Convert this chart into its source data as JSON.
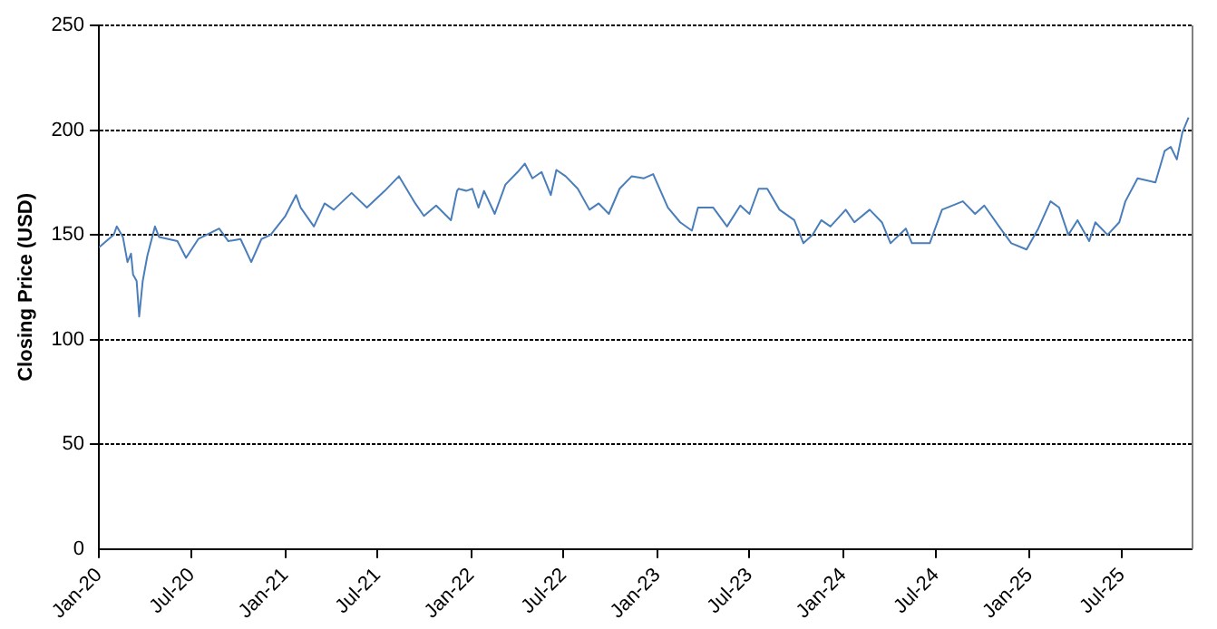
{
  "chart_data": {
    "type": "line",
    "ylabel": "Closing Price (USD)",
    "x": [
      "2020-01-01",
      "2020-01-30",
      "2020-02-05",
      "2020-02-17",
      "2020-02-26",
      "2020-03-04",
      "2020-03-08",
      "2020-03-15",
      "2020-03-20",
      "2020-03-27",
      "2020-04-05",
      "2020-04-20",
      "2020-04-28",
      "2020-05-16",
      "2020-06-03",
      "2020-06-20",
      "2020-07-14",
      "2020-08-24",
      "2020-09-11",
      "2020-10-05",
      "2020-10-26",
      "2020-11-15",
      "2020-12-03",
      "2021-01-01",
      "2021-01-22",
      "2021-01-31",
      "2021-02-26",
      "2021-03-19",
      "2021-04-06",
      "2021-05-11",
      "2021-06-10",
      "2021-07-15",
      "2021-08-12",
      "2021-09-13",
      "2021-09-30",
      "2021-10-24",
      "2021-11-22",
      "2021-12-04",
      "2021-12-07",
      "2021-12-22",
      "2022-01-03",
      "2022-01-15",
      "2022-01-26",
      "2022-02-16",
      "2022-03-09",
      "2022-04-02",
      "2022-04-16",
      "2022-05-01",
      "2022-05-19",
      "2022-06-06",
      "2022-06-17",
      "2022-07-05",
      "2022-07-29",
      "2022-08-21",
      "2022-09-08",
      "2022-09-28",
      "2022-10-19",
      "2022-11-12",
      "2022-12-06",
      "2022-12-24",
      "2023-01-22",
      "2023-02-15",
      "2023-03-10",
      "2023-03-22",
      "2023-04-21",
      "2023-05-18",
      "2023-06-13",
      "2023-07-01",
      "2023-07-19",
      "2023-08-05",
      "2023-08-29",
      "2023-09-27",
      "2023-10-15",
      "2023-11-02",
      "2023-11-19",
      "2023-12-07",
      "2024-01-06",
      "2024-01-23",
      "2024-02-22",
      "2024-03-17",
      "2024-04-03",
      "2024-05-03",
      "2024-05-15",
      "2024-06-19",
      "2024-07-13",
      "2024-08-23",
      "2024-09-16",
      "2024-10-04",
      "2024-11-02",
      "2024-11-26",
      "2024-12-26",
      "2025-01-18",
      "2025-02-11",
      "2025-02-28",
      "2025-03-18",
      "2025-04-05",
      "2025-04-28",
      "2025-05-10",
      "2025-06-03",
      "2025-06-26",
      "2025-07-08",
      "2025-08-01",
      "2025-09-05",
      "2025-09-23",
      "2025-10-05",
      "2025-10-17",
      "2025-10-28",
      "2025-11-09"
    ],
    "series": [
      {
        "color": "#4a7ebb",
        "values": [
          144,
          150,
          154,
          149,
          137,
          141,
          131,
          128,
          111,
          128,
          140,
          154,
          149,
          148,
          147,
          139,
          148,
          153,
          147,
          148,
          137,
          148,
          150,
          159,
          169,
          163,
          154,
          165,
          162,
          170,
          163,
          171,
          178,
          165,
          159,
          164,
          157,
          171,
          172,
          171,
          172,
          163,
          171,
          160,
          174,
          180,
          184,
          177,
          180,
          169,
          181,
          178,
          172,
          162,
          165,
          160,
          172,
          178,
          177,
          179,
          163,
          156,
          152,
          163,
          163,
          154,
          164,
          160,
          172,
          172,
          162,
          157,
          146,
          150,
          157,
          154,
          162,
          156,
          162,
          156,
          146,
          153,
          146,
          146,
          162,
          166,
          160,
          164,
          154,
          146,
          143,
          153,
          166,
          163,
          150,
          157,
          147,
          156,
          150,
          156,
          166,
          177,
          175,
          190,
          192,
          186,
          199,
          206
        ]
      }
    ],
    "xlim": [
      "2020-01-01",
      "2025-11-15"
    ],
    "xticks": [
      {
        "value": "2020-01-01",
        "label": "Jan-20"
      },
      {
        "value": "2020-07-01",
        "label": "Jul-20"
      },
      {
        "value": "2021-01-01",
        "label": "Jan-21"
      },
      {
        "value": "2021-07-01",
        "label": "Jul-21"
      },
      {
        "value": "2022-01-01",
        "label": "Jan-22"
      },
      {
        "value": "2022-07-01",
        "label": "Jul-22"
      },
      {
        "value": "2023-01-01",
        "label": "Jan-23"
      },
      {
        "value": "2023-07-01",
        "label": "Jul-23"
      },
      {
        "value": "2024-01-01",
        "label": "Jan-24"
      },
      {
        "value": "2024-07-01",
        "label": "Jul-24"
      },
      {
        "value": "2025-01-01",
        "label": "Jan-25"
      },
      {
        "value": "2025-07-01",
        "label": "Jul-25"
      }
    ],
    "ylim": [
      0,
      250
    ],
    "yticks": [
      0,
      50,
      100,
      150,
      200,
      250
    ],
    "grid": "y",
    "legend": false,
    "marker": "none",
    "line_style": "solid"
  }
}
